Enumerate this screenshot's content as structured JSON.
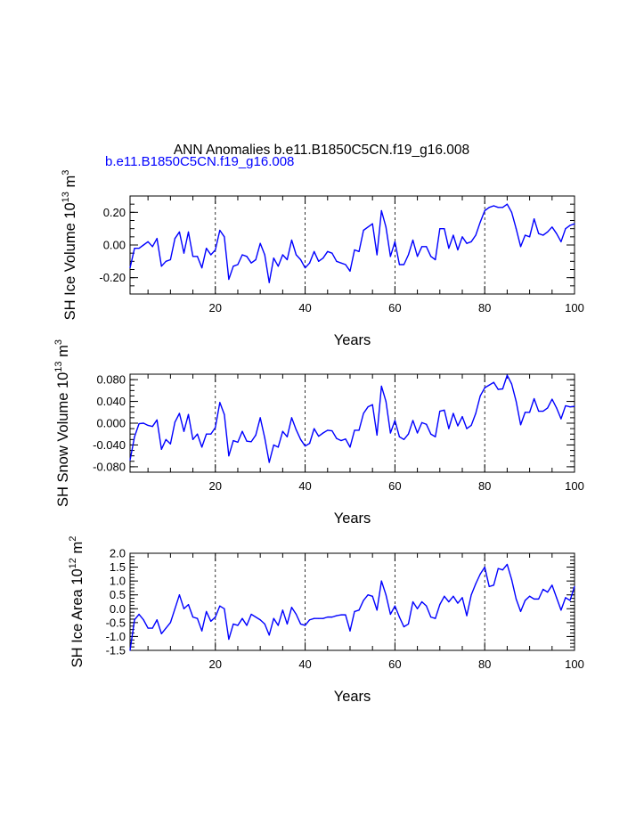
{
  "title": "ANN Anomalies b.e11.B1850C5CN.f19_g16.008",
  "legend_label": "b.e11.B1850C5CN.f19_g16.008",
  "colors": {
    "series": "#0000ff",
    "axis": "#000000",
    "background": "#ffffff"
  },
  "chart_data": [
    {
      "type": "line",
      "ylabel": {
        "text": "SH Ice Volume 10",
        "exp": "13",
        "unit": " m",
        "unit_exp": "3"
      },
      "xlabel": "Years",
      "xlim": [
        1,
        100
      ],
      "ylim": [
        -0.3,
        0.3
      ],
      "xticks": [
        20,
        40,
        60,
        80,
        100
      ],
      "yticks": [
        -0.2,
        0.0,
        0.2
      ],
      "yticklabels": [
        "-0.20",
        "0.00",
        "0.20"
      ],
      "gridlines_x": [
        20,
        40,
        60,
        80
      ],
      "series": [
        {
          "name": "b.e11.B1850C5CN.f19_g16.008",
          "values": [
            -0.14,
            -0.02,
            -0.02,
            0.0,
            0.02,
            -0.01,
            0.04,
            -0.13,
            -0.1,
            -0.09,
            0.04,
            0.08,
            -0.05,
            0.08,
            -0.07,
            -0.07,
            -0.14,
            -0.02,
            -0.06,
            -0.03,
            0.09,
            0.05,
            -0.21,
            -0.13,
            -0.12,
            -0.06,
            -0.07,
            -0.11,
            -0.09,
            0.01,
            -0.06,
            -0.23,
            -0.08,
            -0.13,
            -0.06,
            -0.09,
            0.03,
            -0.06,
            -0.09,
            -0.14,
            -0.11,
            -0.04,
            -0.1,
            -0.08,
            -0.04,
            -0.05,
            -0.1,
            -0.11,
            -0.12,
            -0.16,
            -0.03,
            -0.04,
            0.09,
            0.11,
            0.13,
            -0.06,
            0.21,
            0.11,
            -0.07,
            0.02,
            -0.12,
            -0.12,
            -0.06,
            0.03,
            -0.07,
            -0.01,
            -0.01,
            -0.07,
            -0.09,
            0.1,
            0.1,
            -0.02,
            0.06,
            -0.03,
            0.05,
            0.01,
            0.02,
            0.06,
            0.14,
            0.21,
            0.23,
            0.24,
            0.23,
            0.23,
            0.25,
            0.2,
            0.1,
            -0.01,
            0.06,
            0.05,
            0.16,
            0.07,
            0.06,
            0.08,
            0.11,
            0.07,
            0.02,
            0.1,
            0.12,
            0.13
          ]
        }
      ]
    },
    {
      "type": "line",
      "ylabel": {
        "text": "SH Snow Volume 10",
        "exp": "13",
        "unit": " m",
        "unit_exp": "3"
      },
      "xlabel": "Years",
      "xlim": [
        1,
        100
      ],
      "ylim": [
        -0.09,
        0.09
      ],
      "xticks": [
        20,
        40,
        60,
        80,
        100
      ],
      "yticks": [
        -0.08,
        -0.04,
        0.0,
        0.04,
        0.08
      ],
      "yticklabels": [
        "-0.080",
        "-0.040",
        "0.000",
        "0.040",
        "0.080"
      ],
      "gridlines_x": [
        20,
        40,
        60,
        80
      ],
      "series": [
        {
          "name": "b.e11.B1850C5CN.f19_g16.008",
          "values": [
            -0.068,
            -0.025,
            -0.001,
            0.0,
            -0.004,
            -0.006,
            0.006,
            -0.048,
            -0.03,
            -0.038,
            0.002,
            0.018,
            -0.015,
            0.016,
            -0.03,
            -0.02,
            -0.044,
            -0.02,
            -0.02,
            -0.008,
            0.038,
            0.016,
            -0.06,
            -0.032,
            -0.035,
            -0.015,
            -0.033,
            -0.034,
            -0.022,
            0.01,
            -0.027,
            -0.072,
            -0.04,
            -0.044,
            -0.015,
            -0.025,
            0.01,
            -0.012,
            -0.03,
            -0.042,
            -0.037,
            -0.01,
            -0.024,
            -0.018,
            -0.013,
            -0.014,
            -0.028,
            -0.032,
            -0.029,
            -0.044,
            -0.013,
            -0.013,
            0.018,
            0.03,
            0.034,
            -0.022,
            0.068,
            0.04,
            -0.018,
            0.005,
            -0.025,
            -0.03,
            -0.02,
            0.005,
            -0.018,
            0.001,
            -0.002,
            -0.02,
            -0.025,
            0.022,
            0.024,
            -0.01,
            0.018,
            -0.005,
            0.012,
            -0.01,
            -0.004,
            0.018,
            0.05,
            0.065,
            0.07,
            0.075,
            0.062,
            0.063,
            0.088,
            0.072,
            0.04,
            -0.003,
            0.02,
            0.02,
            0.045,
            0.022,
            0.022,
            0.028,
            0.044,
            0.028,
            0.008,
            0.032,
            0.03,
            0.031
          ]
        }
      ]
    },
    {
      "type": "line",
      "ylabel": {
        "text": "SH Ice Area 10",
        "exp": "12",
        "unit": " m",
        "unit_exp": "2"
      },
      "xlabel": "Years",
      "xlim": [
        1,
        100
      ],
      "ylim": [
        -1.5,
        2.0
      ],
      "xticks": [
        20,
        40,
        60,
        80,
        100
      ],
      "yticks": [
        -1.5,
        -1.0,
        -0.5,
        0.0,
        0.5,
        1.0,
        1.5,
        2.0
      ],
      "yticklabels": [
        "-1.5",
        "-1.0",
        "-0.5",
        "0.0",
        "0.5",
        "1.0",
        "1.5",
        "2.0"
      ],
      "gridlines_x": [
        20,
        40,
        60,
        80
      ],
      "series": [
        {
          "name": "b.e11.B1850C5CN.f19_g16.008",
          "values": [
            -1.5,
            -0.4,
            -0.2,
            -0.4,
            -0.7,
            -0.7,
            -0.4,
            -0.9,
            -0.7,
            -0.5,
            0.0,
            0.5,
            0.0,
            0.15,
            -0.3,
            -0.35,
            -0.8,
            -0.1,
            -0.45,
            -0.3,
            0.1,
            0.0,
            -1.1,
            -0.55,
            -0.6,
            -0.35,
            -0.6,
            -0.2,
            -0.3,
            -0.4,
            -0.55,
            -0.95,
            -0.35,
            -0.6,
            -0.05,
            -0.55,
            0.05,
            -0.2,
            -0.55,
            -0.6,
            -0.4,
            -0.35,
            -0.35,
            -0.35,
            -0.3,
            -0.3,
            -0.25,
            -0.22,
            -0.22,
            -0.8,
            -0.1,
            -0.05,
            0.3,
            0.5,
            0.45,
            -0.05,
            1.0,
            0.5,
            -0.2,
            0.1,
            -0.3,
            -0.65,
            -0.55,
            0.25,
            0.0,
            0.25,
            0.1,
            -0.3,
            -0.35,
            0.15,
            0.45,
            0.25,
            0.45,
            0.2,
            0.4,
            -0.25,
            0.5,
            0.9,
            1.25,
            1.5,
            0.8,
            0.85,
            1.45,
            1.4,
            1.6,
            1.05,
            0.35,
            -0.1,
            0.3,
            0.45,
            0.35,
            0.35,
            0.7,
            0.6,
            0.85,
            0.4,
            -0.05,
            0.4,
            0.3,
            0.8
          ]
        }
      ]
    }
  ]
}
